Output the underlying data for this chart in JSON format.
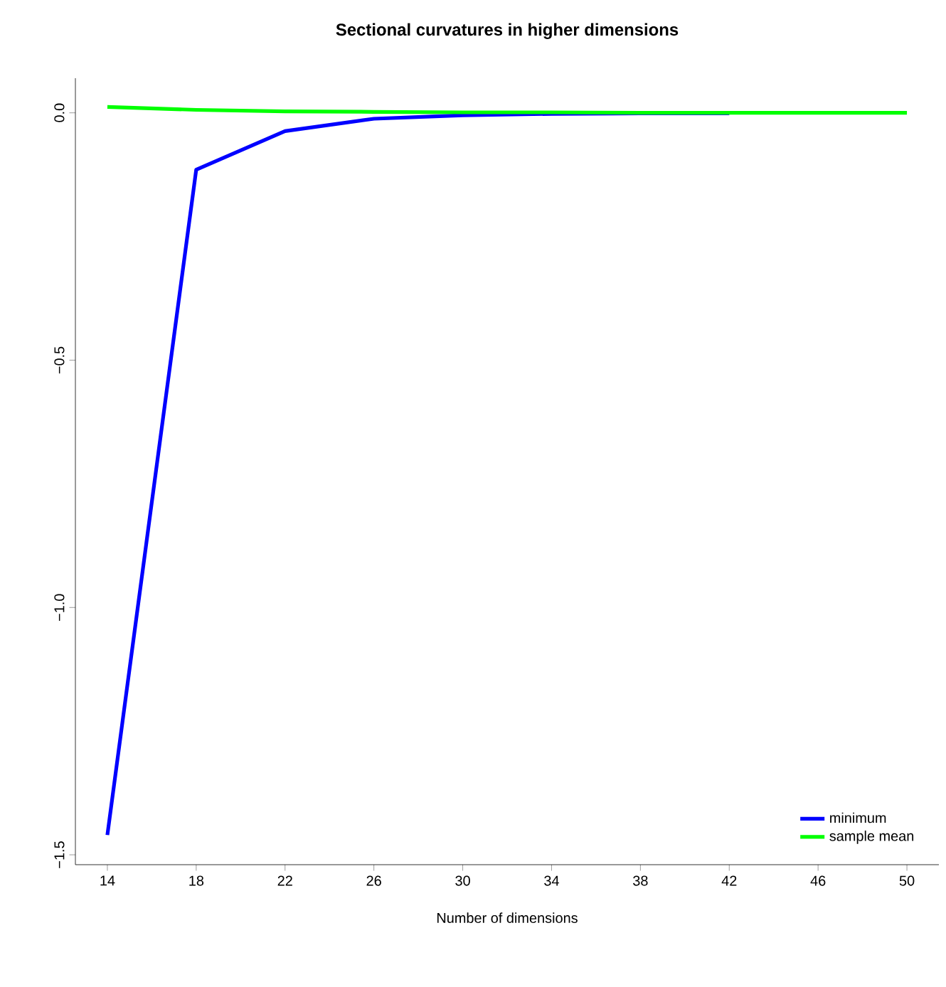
{
  "chart_data": {
    "type": "line",
    "title": "Sectional curvatures in higher dimensions",
    "xlabel": "Number of dimensions",
    "x": [
      14,
      18,
      22,
      26,
      30,
      34,
      38,
      42,
      46,
      50
    ],
    "series": [
      {
        "name": "minimum",
        "color": "#0000ff",
        "values": [
          -1.46,
          -0.115,
          -0.037,
          -0.012,
          -0.005,
          -0.002,
          -0.001,
          -0.001,
          null,
          null
        ]
      },
      {
        "name": "sample mean",
        "color": "#00ff00",
        "values": [
          0.012,
          0.006,
          0.003,
          0.002,
          0.001,
          0.001,
          0.0,
          0.0,
          0.0,
          0.0
        ]
      }
    ],
    "xlim": [
      12.56,
      51.44
    ],
    "ylim": [
      -1.52,
      0.07
    ],
    "xticks": [
      14,
      18,
      22,
      26,
      30,
      34,
      38,
      42,
      46,
      50
    ],
    "yticks": [
      {
        "value": -1.5,
        "label": "−1.5"
      },
      {
        "value": -1.0,
        "label": "−1.0"
      },
      {
        "value": -0.5,
        "label": "−0.5"
      },
      {
        "value": 0.0,
        "label": "0.0"
      }
    ],
    "legend": "bottom right",
    "grid": false,
    "marker": "none",
    "line_style": "solid"
  }
}
